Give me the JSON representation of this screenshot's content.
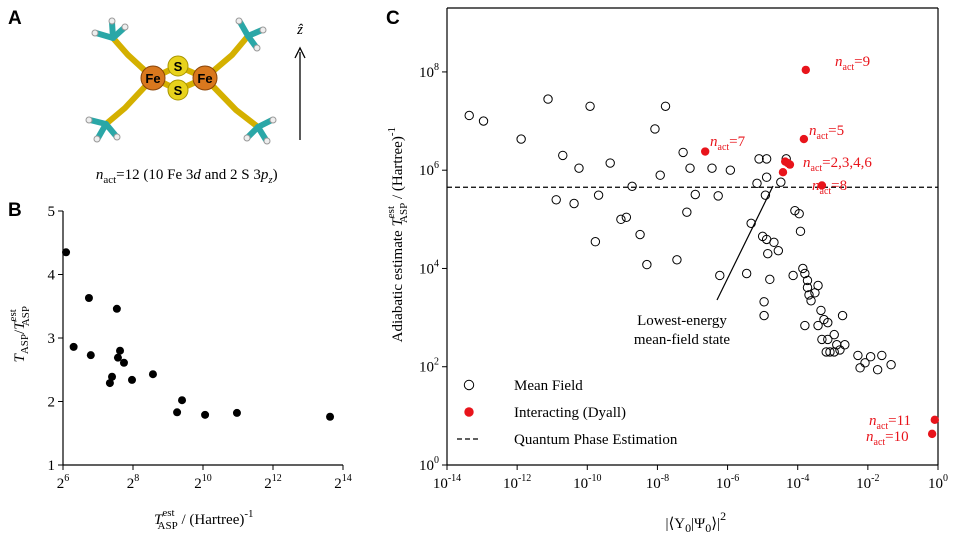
{
  "panel_labels": [
    "A",
    "B",
    "C"
  ],
  "panel_a": {
    "atom_labels": [
      "Fe",
      "S",
      "S",
      "Fe"
    ],
    "axis_label": "ẑ",
    "caption_parts": [
      "n",
      "act",
      "=12 (10 Fe 3",
      "d",
      " and 2 S 3",
      "p",
      "z",
      ")"
    ]
  },
  "chart_data": [
    {
      "type": "scatter",
      "xscale": "log",
      "yscale": "linear",
      "color": "#000000",
      "x": [
        68,
        79,
        107,
        111,
        162,
        169,
        186,
        198,
        190,
        214,
        251,
        380,
        613,
        676,
        1067,
        2006,
        12675
      ],
      "values": [
        4.35,
        2.86,
        3.63,
        2.73,
        2.29,
        2.39,
        3.46,
        2.8,
        2.69,
        2.61,
        2.34,
        2.43,
        1.83,
        2.02,
        1.79,
        1.82,
        1.76
      ],
      "xlim": [
        64,
        16384
      ],
      "xticks": [
        {
          "value": 64,
          "label": "2",
          "sup": "6"
        },
        {
          "value": 256,
          "label": "2",
          "sup": "8"
        },
        {
          "value": 1024,
          "label": "2",
          "sup": "10"
        },
        {
          "value": 4096,
          "label": "2",
          "sup": "12"
        },
        {
          "value": 16384,
          "label": "2",
          "sup": "14"
        }
      ],
      "ylim": [
        1,
        5
      ],
      "yticks": [
        1,
        2,
        3,
        4,
        5
      ],
      "x_label_parts": [
        "T",
        "est",
        "ASP",
        " / (Hartree)",
        "-1"
      ],
      "y_label_parts": [
        "T",
        "ASP",
        "/",
        "T",
        "est",
        "ASP"
      ]
    },
    {
      "type": "scatter",
      "xscale": "log",
      "yscale": "log",
      "series": [
        {
          "name": "Mean Field",
          "color": "#000000",
          "marker": "open",
          "x": [
            4.3e-14,
            1.1e-13,
            1.3e-12,
            7.6e-12,
            1.3e-11,
            2e-11,
            4.2e-11,
            5.8e-11,
            1.2e-10,
            1.7e-10,
            2.1e-10,
            4.5e-10,
            9.1e-10,
            1.3e-09,
            1.9e-09,
            3.2e-09,
            5e-09,
            8.5e-09,
            1.2e-08,
            1.7e-08,
            3.6e-08,
            5.4e-08,
            6.9e-08,
            8.5e-08,
            1.2e-07,
            3.6e-07,
            5.4e-07,
            6e-07,
            1.2e-06,
            3.5e-06,
            4.7e-06,
            7.9e-06,
            1e-05,
            1.3e-05,
            1.2e-05,
            1.3e-05,
            1.3e-05,
            1.1e-05,
            1.1e-05,
            1.4e-05,
            1.6e-05,
            2.1e-05,
            2.8e-05,
            3.3e-05,
            4.7e-05,
            8.3e-05,
            0.00011,
            0.00012,
            7.4e-05,
            0.00014,
            0.00016,
            0.00019,
            0.00019,
            0.00021,
            0.00024,
            0.00031,
            0.00038,
            0.00016,
            0.00046,
            0.00038,
            0.00056,
            0.00072,
            0.00049,
            0.00072,
            0.00083,
            0.0011,
            0.0013,
            0.0016,
            0.0022,
            0.0019,
            0.0011,
            0.00065,
            0.0052,
            0.006,
            0.0083,
            0.012,
            0.019,
            0.025,
            0.046,
            6.9e-06
          ],
          "values": [
            13000000.0,
            10000000.0,
            4300000.0,
            28000000.0,
            250000.0,
            2000000.0,
            210000.0,
            1100000.0,
            20000000.0,
            35000.0,
            310000.0,
            1400000.0,
            100000.0,
            110000.0,
            470000.0,
            49000.0,
            12000.0,
            6900000.0,
            790000.0,
            20000000.0,
            15000.0,
            2300000.0,
            140000.0,
            1100000.0,
            320000.0,
            1100000.0,
            300000.0,
            7200.0,
            1000000.0,
            7900.0,
            83000.0,
            1700000.0,
            45000.0,
            1700000.0,
            310000.0,
            720000.0,
            39000.0,
            2100.0,
            1100.0,
            20000.0,
            6000.0,
            34000.0,
            23000.0,
            570000.0,
            1700000.0,
            150000.0,
            130000.0,
            57000.0,
            7200.0,
            10000.0,
            7900.0,
            5700.0,
            4100.0,
            2900.0,
            2200.0,
            3200.0,
            4500.0,
            690.0,
            1400.0,
            690.0,
            910.0,
            790.0,
            360.0,
            360.0,
            200.0,
            450.0,
            280.0,
            220.0,
            280.0,
            1100.0,
            200.0,
            200.0,
            170.0,
            95.0,
            120.0,
            160.0,
            87.0,
            170.0,
            110.0,
            540000.0
          ]
        },
        {
          "name": "Interacting (Dyall)",
          "color": "#e8141b",
          "marker": "filled",
          "x": [
            0.00017,
            2.3e-07,
            0.00015,
            4.4e-05,
            6e-05,
            3.8e-05,
            5.2e-05,
            0.00049,
            0.81,
            0.68
          ],
          "values": [
            110000000.0,
            2400000.0,
            4300000.0,
            1500000.0,
            1300000.0,
            910000.0,
            1400000.0,
            490000.0,
            8.3,
            4.3
          ]
        }
      ],
      "hlines": [
        {
          "name": "Quantum Phase Estimation",
          "value": 450000,
          "color": "#000000",
          "dash": "dashed"
        }
      ],
      "annotations": [
        {
          "parts": [
            "n",
            "act",
            "=9"
          ]
        },
        {
          "parts": [
            "n",
            "act",
            "=7"
          ]
        },
        {
          "parts": [
            "n",
            "act",
            "=5"
          ]
        },
        {
          "parts": [
            "n",
            "act",
            "=2,3,4,6"
          ]
        },
        {
          "parts": [
            "n",
            "act",
            "=8"
          ]
        },
        {
          "parts": [
            "n",
            "act",
            "=11"
          ]
        },
        {
          "parts": [
            "n",
            "act",
            "=10"
          ]
        }
      ],
      "callout": {
        "lines": [
          "Lowest-energy",
          "mean-field state"
        ]
      },
      "legend": "lower left",
      "xlim": [
        1e-14,
        1
      ],
      "xticks": [
        {
          "value": 1e-14,
          "label": "10",
          "sup": "-14"
        },
        {
          "value": 1e-12,
          "label": "10",
          "sup": "-12"
        },
        {
          "value": 1e-10,
          "label": "10",
          "sup": "-10"
        },
        {
          "value": 1e-08,
          "label": "10",
          "sup": "-8"
        },
        {
          "value": 1e-06,
          "label": "10",
          "sup": "-6"
        },
        {
          "value": 0.0001,
          "label": "10",
          "sup": "-4"
        },
        {
          "value": 0.01,
          "label": "10",
          "sup": "-2"
        },
        {
          "value": 1,
          "label": "10",
          "sup": "0"
        }
      ],
      "ylim": [
        1,
        2000000000.0
      ],
      "yticks": [
        {
          "value": 1,
          "label": "10",
          "sup": "0"
        },
        {
          "value": 100,
          "label": "10",
          "sup": "2"
        },
        {
          "value": 10000,
          "label": "10",
          "sup": "4"
        },
        {
          "value": 1000000,
          "label": "10",
          "sup": "6"
        },
        {
          "value": 100000000,
          "label": "10",
          "sup": "8"
        }
      ],
      "x_label_parts": [
        "|⟨Υ",
        "0",
        "|Ψ",
        "0",
        "⟩|",
        "2"
      ],
      "y_label_parts": [
        "Adiabatic estimate ",
        "T",
        "est",
        "ASP",
        " / (Hartree)",
        "-1"
      ]
    }
  ]
}
